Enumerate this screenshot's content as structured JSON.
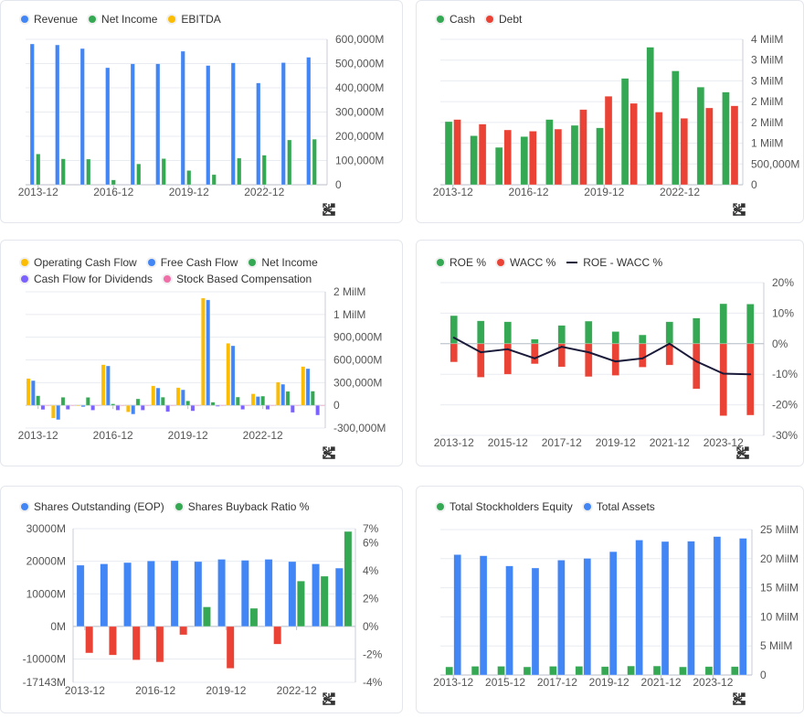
{
  "toolbar_icons": [
    "download-icon",
    "share-icon",
    "fullscreen-icon"
  ],
  "chart_data": [
    {
      "type": "bar",
      "categories": [
        "2013-12",
        "2014-12",
        "2015-12",
        "2016-12",
        "2017-12",
        "2018-12",
        "2019-12",
        "2020-12",
        "2021-12",
        "2022-12",
        "2023-12",
        "2024-12"
      ],
      "x_tick_labels": [
        "2013-12",
        "2016-12",
        "2019-12",
        "2022-12"
      ],
      "legend": "top-left",
      "grid": true,
      "y_axis": {
        "side": "right",
        "min": 0,
        "max": 600000,
        "ticks": [
          {
            "value": 0,
            "label": "0"
          },
          {
            "value": 100000,
            "label": "100,000M"
          },
          {
            "value": 200000,
            "label": "200,000M"
          },
          {
            "value": 300000,
            "label": "300,000M"
          },
          {
            "value": 400000,
            "label": "400,000M"
          },
          {
            "value": 500000,
            "label": "500,000M"
          },
          {
            "value": 600000,
            "label": "600,000M"
          }
        ]
      },
      "series": [
        {
          "name": "Revenue",
          "color": "#4285f4",
          "values": [
            581000,
            577000,
            562000,
            483000,
            499000,
            499000,
            551000,
            492000,
            503000,
            420000,
            504000,
            526000
          ]
        },
        {
          "name": "Net Income",
          "color": "#34a853",
          "values": [
            127000,
            107000,
            106000,
            20000,
            86000,
            108000,
            59000,
            42000,
            110000,
            122000,
            185000,
            188000
          ]
        },
        {
          "name": "EBITDA",
          "color": "#fbbc04",
          "values": [
            null,
            null,
            null,
            null,
            null,
            null,
            null,
            null,
            null,
            null,
            null,
            null
          ]
        }
      ]
    },
    {
      "type": "bar",
      "categories": [
        "2013-12",
        "2014-12",
        "2015-12",
        "2016-12",
        "2017-12",
        "2018-12",
        "2019-12",
        "2020-12",
        "2021-12",
        "2022-12",
        "2023-12",
        "2024-12"
      ],
      "x_tick_labels": [
        "2013-12",
        "2016-12",
        "2019-12",
        "2022-12"
      ],
      "legend": "top-left",
      "grid": true,
      "y_axis": {
        "side": "right",
        "min": 0,
        "max": 3500000,
        "ticks": [
          {
            "value": 0,
            "label": "0"
          },
          {
            "value": 500000,
            "label": "500,000M"
          },
          {
            "value": 1000000,
            "label": "1 MilM"
          },
          {
            "value": 1500000,
            "label": "2 MilM"
          },
          {
            "value": 2000000,
            "label": "2 MilM"
          },
          {
            "value": 2500000,
            "label": "3 MilM"
          },
          {
            "value": 3000000,
            "label": "3 MilM"
          },
          {
            "value": 3500000,
            "label": "4 MilM"
          }
        ]
      },
      "series": [
        {
          "name": "Cash",
          "color": "#34a853",
          "values": [
            1520000,
            1180000,
            900000,
            1160000,
            1570000,
            1430000,
            1370000,
            2560000,
            3310000,
            2740000,
            2350000,
            2230000
          ]
        },
        {
          "name": "Debt",
          "color": "#ea4335",
          "values": [
            1570000,
            1460000,
            1320000,
            1290000,
            1340000,
            1810000,
            2130000,
            1960000,
            1750000,
            1600000,
            1850000,
            1900000
          ]
        }
      ]
    },
    {
      "type": "bar",
      "categories": [
        "2013-12",
        "2014-12",
        "2015-12",
        "2016-12",
        "2017-12",
        "2018-12",
        "2019-12",
        "2020-12",
        "2021-12",
        "2022-12",
        "2023-12",
        "2024-12"
      ],
      "x_tick_labels": [
        "2013-12",
        "2016-12",
        "2019-12",
        "2022-12"
      ],
      "legend": "top-left",
      "grid": true,
      "y_axis": {
        "side": "right",
        "min": -300000,
        "max": 1500000,
        "ticks": [
          {
            "value": -300000,
            "label": "-300,000M"
          },
          {
            "value": 0,
            "label": "0"
          },
          {
            "value": 300000,
            "label": "300,000M"
          },
          {
            "value": 600000,
            "label": "600,000M"
          },
          {
            "value": 900000,
            "label": "900,000M"
          },
          {
            "value": 1200000,
            "label": "1 MilM"
          },
          {
            "value": 1500000,
            "label": "2 MilM"
          }
        ]
      },
      "series": [
        {
          "name": "Operating Cash Flow",
          "color": "#fbbc04",
          "values": [
            355000,
            -170000,
            -5000,
            537000,
            -89000,
            258000,
            234000,
            1417000,
            820000,
            153000,
            307000,
            513000
          ]
        },
        {
          "name": "Free Cash Flow",
          "color": "#4285f4",
          "values": [
            327000,
            -190000,
            -20000,
            521000,
            -117000,
            230000,
            206000,
            1393000,
            787000,
            117000,
            279000,
            485000
          ]
        },
        {
          "name": "Net Income",
          "color": "#34a853",
          "values": [
            127000,
            107000,
            106000,
            20000,
            86000,
            108000,
            59000,
            42000,
            110000,
            122000,
            185000,
            188000
          ]
        },
        {
          "name": "Cash Flow for Dividends",
          "color": "#7b61ff",
          "values": [
            -57000,
            -55000,
            -65000,
            -65000,
            -65000,
            -85000,
            -75000,
            -15000,
            -55000,
            -55000,
            -95000,
            -130000
          ]
        },
        {
          "name": "Stock Based Compensation",
          "color": "#f06fa8",
          "values": [
            5000,
            5000,
            5000,
            5000,
            5000,
            5000,
            5000,
            5000,
            5000,
            5000,
            5000,
            5000
          ]
        }
      ]
    },
    {
      "type": "bar",
      "categories": [
        "2013-12",
        "2014-12",
        "2015-12",
        "2016-12",
        "2017-12",
        "2018-12",
        "2019-12",
        "2020-12",
        "2021-12",
        "2022-12",
        "2023-12",
        "2024-12"
      ],
      "x_tick_labels": [
        "2013-12",
        "2015-12",
        "2017-12",
        "2019-12",
        "2021-12",
        "2023-12"
      ],
      "legend": "top-left",
      "grid": true,
      "stacked": true,
      "y_axis": {
        "side": "right",
        "min": -30,
        "max": 20,
        "ticks": [
          {
            "value": -30,
            "label": "-30%"
          },
          {
            "value": -20,
            "label": "-20%"
          },
          {
            "value": -10,
            "label": "-10%"
          },
          {
            "value": 0,
            "label": "0%"
          },
          {
            "value": 10,
            "label": "10%"
          },
          {
            "value": 20,
            "label": "20%"
          }
        ]
      },
      "series": [
        {
          "name": "ROE %",
          "color": "#34a853",
          "kind": "bar",
          "values": [
            9.2,
            7.5,
            7.2,
            1.5,
            6.0,
            7.4,
            4.0,
            2.9,
            7.2,
            8.4,
            13.1,
            13.0
          ]
        },
        {
          "name": "WACC %",
          "color": "#ea4335",
          "kind": "bar",
          "values": [
            -6.0,
            -11.0,
            -10.0,
            -6.6,
            -7.6,
            -10.8,
            -10.4,
            -7.7,
            -7.0,
            -14.8,
            -23.6,
            -23.4
          ]
        },
        {
          "name": "ROE - WACC %",
          "color": "#1a1a3a",
          "kind": "line",
          "values": [
            2.0,
            -2.8,
            -1.8,
            -4.8,
            -1.0,
            -2.8,
            -5.8,
            -4.8,
            0.0,
            -5.8,
            -9.8,
            -10.0
          ]
        }
      ]
    },
    {
      "type": "bar",
      "categories": [
        "2013-12",
        "2014-12",
        "2015-12",
        "2016-12",
        "2017-12",
        "2018-12",
        "2019-12",
        "2020-12",
        "2021-12",
        "2022-12",
        "2023-12",
        "2024-12"
      ],
      "x_tick_labels": [
        "2013-12",
        "2016-12",
        "2019-12",
        "2022-12"
      ],
      "legend": "top-left",
      "grid": true,
      "y_axis": {
        "side": "left",
        "min": -17143,
        "max": 30000,
        "ticks": [
          {
            "value": -17143,
            "label": "-17143M"
          },
          {
            "value": -10000,
            "label": "-10000M"
          },
          {
            "value": 0,
            "label": "0M"
          },
          {
            "value": 10000,
            "label": "10000M"
          },
          {
            "value": 20000,
            "label": "20000M"
          },
          {
            "value": 30000,
            "label": "30000M"
          }
        ]
      },
      "y_axis_right": {
        "side": "right",
        "min": -4,
        "max": 7,
        "ticks": [
          {
            "value": -4,
            "label": "-4%"
          },
          {
            "value": -2,
            "label": "-2%"
          },
          {
            "value": 0,
            "label": "0%"
          },
          {
            "value": 2,
            "label": "2%"
          },
          {
            "value": 4,
            "label": "4%"
          },
          {
            "value": 6,
            "label": "6%"
          },
          {
            "value": 7,
            "label": "7%"
          }
        ]
      },
      "series": [
        {
          "name": "Shares Outstanding (EOP)",
          "color": "#4285f4",
          "axis": "left",
          "values": [
            18800,
            19200,
            19600,
            20100,
            20200,
            19900,
            20600,
            20300,
            20600,
            19900,
            19200,
            17900
          ]
        },
        {
          "name": "Shares Buyback Ratio %",
          "color": "#34a853",
          "negative_color": "#ea4335",
          "axis": "right",
          "values": [
            -1.9,
            -2.05,
            -2.4,
            -2.55,
            -0.6,
            1.4,
            -3.0,
            1.3,
            -1.27,
            3.25,
            3.6,
            6.8
          ]
        }
      ]
    },
    {
      "type": "bar",
      "categories": [
        "2013-12",
        "2014-12",
        "2015-12",
        "2016-12",
        "2017-12",
        "2018-12",
        "2019-12",
        "2020-12",
        "2021-12",
        "2022-12",
        "2023-12",
        "2024-12"
      ],
      "x_tick_labels": [
        "2013-12",
        "2015-12",
        "2017-12",
        "2019-12",
        "2021-12",
        "2023-12"
      ],
      "legend": "top-left",
      "grid": true,
      "y_axis": {
        "side": "right",
        "min": 0,
        "max": 25000000,
        "ticks": [
          {
            "value": 0,
            "label": "0"
          },
          {
            "value": 5000000,
            "label": "5 MilM"
          },
          {
            "value": 10000000,
            "label": "10 MilM"
          },
          {
            "value": 15000000,
            "label": "15 MilM"
          },
          {
            "value": 20000000,
            "label": "20 MilM"
          },
          {
            "value": 25000000,
            "label": "25 MilM"
          }
        ]
      },
      "series": [
        {
          "name": "Total Stockholders Equity",
          "color": "#34a853",
          "values": [
            1400000,
            1500000,
            1500000,
            1400000,
            1500000,
            1500000,
            1450000,
            1550000,
            1550000,
            1400000,
            1450000,
            1450000
          ]
        },
        {
          "name": "Total Assets",
          "color": "#4285f4",
          "values": [
            20700000,
            20500000,
            18750000,
            18400000,
            19750000,
            20050000,
            21200000,
            23200000,
            22950000,
            23000000,
            23800000,
            23500000
          ]
        }
      ]
    }
  ]
}
